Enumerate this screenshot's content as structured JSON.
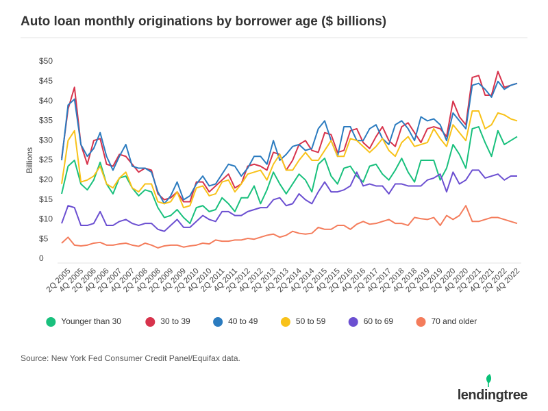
{
  "chart_data": {
    "type": "line",
    "title": "Auto loan monthly originations by borrower age ($ billions)",
    "y_label": "Billions",
    "source": "Source: New York Fed Consumer Credit Panel/Equifax data.",
    "brand": "lendingtree",
    "categories": [
      null,
      "2Q 2005",
      null,
      "4Q 2005",
      null,
      "2Q 2006",
      null,
      "4Q 2006",
      null,
      "2Q 2007",
      null,
      "4Q 2007",
      null,
      "2Q 2008",
      null,
      "4Q 2008",
      null,
      "2Q 2009",
      null,
      "4Q 2009",
      null,
      "2Q 2010",
      null,
      "4Q 2010",
      null,
      "2Q 2011",
      null,
      "4Q 2011",
      null,
      "2Q 2012",
      null,
      "4Q 2012",
      null,
      "2Q 2013",
      null,
      "4Q 2013",
      null,
      "2Q 2014",
      null,
      "4Q 2014",
      null,
      "2Q 2015",
      null,
      "4Q 2015",
      null,
      "2Q 2016",
      null,
      "4Q 2016",
      null,
      "2Q 2017",
      null,
      "4Q 2017",
      null,
      "2Q 2018",
      null,
      "4Q 2018",
      null,
      "2Q 2019",
      null,
      "4Q 2019",
      null,
      "2Q 2020",
      null,
      "4Q 2020",
      null,
      "2Q 2021",
      null,
      "4Q 2021",
      null,
      "2Q 2022",
      null,
      "4Q 2022"
    ],
    "ylim": [
      0,
      50
    ],
    "yticks": [
      0,
      {
        "value": 5,
        "label": "$5"
      },
      {
        "value": 10,
        "label": "$10"
      },
      {
        "value": 15,
        "label": "$15"
      },
      {
        "value": 20,
        "label": "$20"
      },
      {
        "value": 25,
        "label": "$25"
      },
      {
        "value": 30,
        "label": "$30"
      },
      {
        "value": 35,
        "label": "$35"
      },
      {
        "value": 40,
        "label": "$40"
      },
      {
        "value": 45,
        "label": "$45"
      },
      {
        "value": 50,
        "label": "$50"
      }
    ],
    "grid": false,
    "legend": "bottom",
    "series": [
      {
        "name": "Younger than 30",
        "color": "#19c07d",
        "values": [
          16.5,
          23.5,
          25,
          19,
          17.5,
          20,
          24.5,
          19,
          16.5,
          20.5,
          21,
          18,
          16,
          17.5,
          17,
          13,
          10.5,
          11,
          12.5,
          10.5,
          9,
          13,
          13.5,
          12,
          12.5,
          15.5,
          14,
          12,
          15.5,
          15.5,
          18.5,
          14,
          17.5,
          22,
          19,
          16.5,
          19,
          21.5,
          20,
          17,
          24,
          25.5,
          21,
          19,
          23,
          23.5,
          21,
          19.5,
          23.5,
          24,
          21.5,
          20,
          22.5,
          25.5,
          22,
          19.5,
          25,
          25,
          25,
          20,
          23,
          29,
          26.5,
          23,
          33,
          33.5,
          29.5,
          26,
          32.5,
          29,
          30,
          31
        ]
      },
      {
        "name": "30 to 39",
        "color": "#d7334c",
        "values": [
          25.5,
          38,
          43.5,
          29,
          24,
          30,
          30.5,
          24,
          23.5,
          26.5,
          26,
          24,
          22,
          23,
          22.5,
          16.5,
          15,
          15.5,
          17,
          14.5,
          14.5,
          19.5,
          19.5,
          17,
          18.5,
          20,
          21.5,
          18,
          19,
          23.5,
          24,
          23.5,
          22.5,
          27,
          26.5,
          22.5,
          25,
          29,
          30,
          27.5,
          27,
          32,
          31.5,
          27,
          27.5,
          32.5,
          33,
          29.5,
          28,
          31,
          33.5,
          30,
          28.5,
          33.5,
          34.5,
          32,
          29.5,
          33,
          33.5,
          33,
          31,
          40,
          36,
          34,
          46,
          46.5,
          41.5,
          41.5,
          47.5,
          43.5,
          44,
          44.5
        ]
      },
      {
        "name": "40 to 49",
        "color": "#2b7bbf",
        "values": [
          25,
          39,
          40.5,
          29,
          26,
          28,
          32,
          26,
          22.5,
          26,
          29,
          23.5,
          23,
          23,
          22,
          17,
          14,
          16,
          19.5,
          15,
          16,
          19,
          21,
          18.5,
          19,
          21.5,
          24,
          23.5,
          21,
          23,
          26,
          26,
          24,
          30,
          25,
          26.5,
          28.5,
          29,
          27.5,
          28,
          33,
          35,
          30,
          26,
          33.5,
          33.5,
          30,
          30,
          33,
          34,
          30.5,
          29,
          34,
          35,
          33,
          30,
          36,
          35,
          35.5,
          34,
          30,
          37,
          35,
          33,
          44,
          44.5,
          43,
          41,
          45,
          43,
          44,
          44.5
        ]
      },
      {
        "name": "50 to 59",
        "color": "#f8c21a",
        "values": [
          19,
          30,
          32.5,
          19.5,
          20,
          21,
          23.5,
          19,
          18,
          20.5,
          22,
          18,
          17,
          19,
          19,
          14.5,
          14,
          14.5,
          17,
          13,
          13.5,
          18,
          18.5,
          16,
          16.5,
          19.5,
          20,
          17,
          19,
          21.5,
          22,
          22.5,
          20,
          24,
          26.5,
          22.5,
          22.5,
          25,
          27,
          25,
          25,
          27.5,
          30,
          26,
          26,
          30.5,
          30,
          28.5,
          27,
          28.5,
          30.5,
          27.5,
          26,
          29.5,
          31,
          28.5,
          29,
          29.5,
          33,
          30.5,
          28.5,
          34,
          32,
          30,
          37.5,
          37.5,
          33,
          34,
          37,
          36.5,
          35.5,
          35
        ]
      },
      {
        "name": "60 to 69",
        "color": "#6b4fd1",
        "values": [
          9,
          13.5,
          13,
          8.5,
          8.5,
          9,
          12,
          8.5,
          8.5,
          9.5,
          10,
          9,
          8.5,
          9,
          9,
          7.5,
          7,
          8.5,
          10,
          8,
          8,
          9.5,
          11,
          10,
          9.5,
          12,
          12,
          11,
          11,
          12,
          12.5,
          13,
          13,
          15,
          15.5,
          13.5,
          14,
          16.5,
          15,
          14,
          17,
          19.5,
          17,
          17,
          17.5,
          18.5,
          22,
          18.5,
          19,
          18.5,
          18.5,
          16.5,
          19,
          19,
          18.5,
          18.5,
          18.5,
          20,
          20.5,
          21.5,
          17,
          22,
          19,
          20,
          22.5,
          22.5,
          20.5,
          21,
          21.5,
          20,
          21,
          21
        ]
      },
      {
        "name": "70 and older",
        "color": "#f47c5b",
        "values": [
          4,
          5.5,
          3.5,
          3.3,
          3.5,
          4,
          4.2,
          3.5,
          3.5,
          3.8,
          4,
          3.5,
          3.2,
          4,
          3.5,
          2.8,
          3.3,
          3.5,
          3.5,
          3,
          3.3,
          3.5,
          4,
          3.8,
          4.8,
          4.5,
          4.5,
          4.8,
          4.8,
          5.2,
          5,
          5.5,
          6,
          6.3,
          5.5,
          6,
          7,
          6.5,
          6.3,
          6.5,
          8,
          7.5,
          7.5,
          8.5,
          8.5,
          7.5,
          8.8,
          9.5,
          8.8,
          9,
          9.5,
          10,
          9,
          9,
          8.5,
          10.5,
          10.2,
          10,
          10.5,
          8.5,
          11,
          10,
          11,
          13.5,
          9.5,
          9.5,
          10,
          10.5,
          10.5,
          10,
          9.5,
          9
        ]
      }
    ]
  }
}
